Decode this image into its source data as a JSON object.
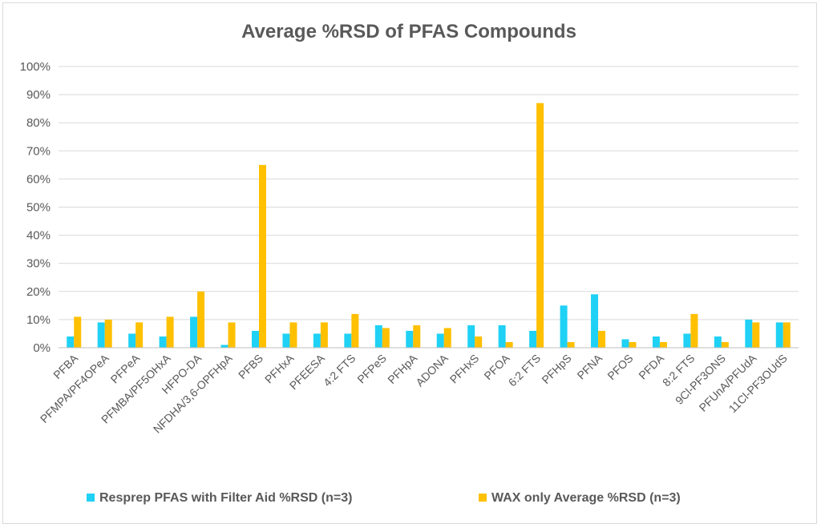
{
  "chart_data": {
    "type": "bar",
    "title": "Average %RSD of PFAS Compounds",
    "xlabel": "",
    "ylabel": "",
    "ylim": [
      0,
      100
    ],
    "yticks": [
      "0%",
      "10%",
      "20%",
      "30%",
      "40%",
      "50%",
      "60%",
      "70%",
      "80%",
      "90%",
      "100%"
    ],
    "grid": true,
    "legend_position": "bottom",
    "categories": [
      "PFBA",
      "PFMPA/PF4OPeA",
      "PFPeA",
      "PFMBA/PF5OHxA",
      "HFPO-DA",
      "NFDHA/3,6-OPFHpA",
      "PFBS",
      "PFHxA",
      "PFEESA",
      "4:2 FTS",
      "PFPeS",
      "PFHpA",
      "ADONA",
      "PFHxS",
      "PFOA",
      "6:2 FTS",
      "PFHpS",
      "PFNA",
      "PFOS",
      "PFDA",
      "8:2 FTS",
      "9Cl-PF3ONS",
      "PFUnA/PFUdA",
      "11Cl-PF3OUdS"
    ],
    "series": [
      {
        "name": "Resprep PFAS with Filter Aid %RSD (n=3)",
        "color": "#1fd1f5",
        "values": [
          4,
          9,
          5,
          4,
          11,
          1,
          6,
          5,
          5,
          5,
          8,
          6,
          5,
          8,
          8,
          6,
          15,
          19,
          3,
          4,
          5,
          4,
          10,
          9
        ]
      },
      {
        "name": "WAX only Average %RSD (n=3)",
        "color": "#ffc000",
        "values": [
          11,
          10,
          9,
          11,
          20,
          9,
          65,
          9,
          9,
          12,
          7,
          8,
          7,
          4,
          2,
          87,
          2,
          6,
          2,
          2,
          12,
          2,
          9,
          9
        ]
      }
    ]
  }
}
